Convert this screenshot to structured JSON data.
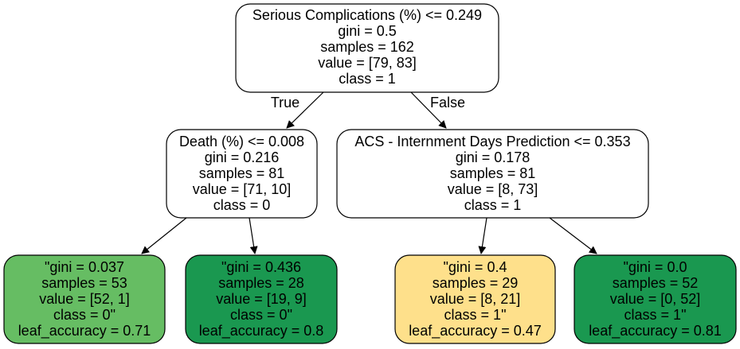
{
  "nodes": [
    {
      "id": "root",
      "fill": "#ffffff",
      "lines": [
        "Serious Complications (%) <= 0.249",
        "gini = 0.5",
        "samples = 162",
        "value = [79, 83]",
        "class = 1"
      ]
    },
    {
      "id": "left",
      "fill": "#ffffff",
      "lines": [
        "Death (%) <= 0.008",
        "gini = 0.216",
        "samples = 81",
        "value = [71, 10]",
        "class = 0"
      ]
    },
    {
      "id": "right",
      "fill": "#ffffff",
      "lines": [
        "ACS - Internment Days Prediction <= 0.353",
        "gini = 0.178",
        "samples = 81",
        "value = [8, 73]",
        "class = 1"
      ]
    },
    {
      "id": "leaf-1",
      "fill": "#66bd63",
      "lines": [
        "\"gini = 0.037",
        "samples = 53",
        "value = [52, 1]",
        "class = 0\"",
        "leaf_accuracy = 0.71"
      ]
    },
    {
      "id": "leaf-2",
      "fill": "#1a9850",
      "lines": [
        "\"gini = 0.436",
        "samples = 28",
        "value = [19, 9]",
        "class = 0\"",
        "leaf_accuracy = 0.8"
      ]
    },
    {
      "id": "leaf-3",
      "fill": "#fee08b",
      "lines": [
        "\"gini = 0.4",
        "samples = 29",
        "value = [8, 21]",
        "class = 1\"",
        "leaf_accuracy = 0.47"
      ]
    },
    {
      "id": "leaf-4",
      "fill": "#1a9850",
      "lines": [
        "\"gini = 0.0",
        "samples = 52",
        "value = [0, 52]",
        "class = 1\"",
        "leaf_accuracy = 0.81"
      ]
    }
  ],
  "edge_labels": {
    "true": "True",
    "false": "False"
  }
}
